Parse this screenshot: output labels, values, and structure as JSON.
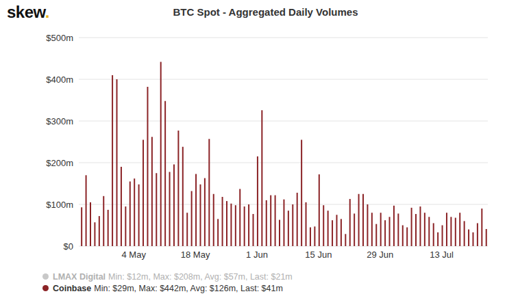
{
  "chart_data": {
    "type": "bar",
    "logo": "skew.",
    "title": "BTC Spot - Aggregated Daily Volumes",
    "categories": [
      null,
      null,
      null,
      null,
      null,
      null,
      null,
      null,
      null,
      null,
      null,
      null,
      "4 May",
      null,
      null,
      null,
      null,
      null,
      null,
      null,
      null,
      null,
      null,
      null,
      null,
      null,
      "18 May",
      null,
      null,
      null,
      null,
      null,
      null,
      null,
      null,
      null,
      null,
      null,
      null,
      null,
      "1 Jun",
      null,
      null,
      null,
      null,
      null,
      null,
      null,
      null,
      null,
      null,
      null,
      null,
      null,
      "15 Jun",
      null,
      null,
      null,
      null,
      null,
      null,
      null,
      null,
      null,
      null,
      null,
      null,
      null,
      "29 Jun",
      null,
      null,
      null,
      null,
      null,
      null,
      null,
      null,
      null,
      null,
      null,
      null,
      null,
      "13 Jul",
      null,
      null,
      null,
      null,
      null,
      null,
      null,
      null,
      null,
      null
    ],
    "series": [
      {
        "name": "LMAX Digital",
        "stats": "Min: $12m, Max: $208m, Avg: $57m, Last: $21m",
        "color": "#c8c8c8",
        "values": [
          null,
          null,
          null,
          null,
          null,
          null,
          null,
          null,
          null,
          null,
          null,
          null,
          null,
          null,
          null,
          null,
          null,
          null,
          null,
          null,
          null,
          null,
          null,
          null,
          null,
          null,
          null,
          null,
          null,
          null,
          null,
          null,
          null,
          null,
          null,
          null,
          null,
          null,
          null,
          null,
          null,
          null,
          null,
          null,
          null,
          null,
          null,
          null,
          null,
          null,
          null,
          null,
          null,
          null,
          null,
          null,
          null,
          null,
          null,
          null,
          null,
          null,
          null,
          null,
          null,
          null,
          null,
          null,
          null,
          null,
          null,
          null,
          null,
          null,
          null,
          null,
          null,
          null,
          null,
          null,
          null,
          null,
          null,
          null,
          null,
          null,
          null,
          null,
          null,
          null,
          null,
          null,
          null
        ]
      },
      {
        "name": "Coinbase",
        "stats": "Min: $29m, Max: $442m, Avg: $126m, Last: $41m",
        "color": "#8b2326",
        "values": [
          93,
          170,
          105,
          57,
          72,
          120,
          87,
          410,
          400,
          190,
          95,
          155,
          162,
          148,
          255,
          382,
          262,
          175,
          442,
          348,
          178,
          196,
          277,
          238,
          80,
          132,
          173,
          148,
          163,
          257,
          125,
          65,
          118,
          108,
          102,
          98,
          137,
          95,
          100,
          77,
          215,
          326,
          110,
          122,
          122,
          63,
          112,
          85,
          100,
          128,
          255,
          105,
          45,
          47,
          172,
          98,
          85,
          62,
          75,
          65,
          29,
          113,
          78,
          125,
          125,
          100,
          80,
          53,
          80,
          62,
          70,
          97,
          78,
          50,
          45,
          92,
          77,
          95,
          80,
          70,
          55,
          33,
          50,
          80,
          70,
          68,
          80,
          60,
          40,
          33,
          55,
          90,
          41
        ]
      }
    ],
    "ylim": [
      0,
      500
    ],
    "yticks": [
      {
        "value": 0,
        "label": "$0"
      },
      {
        "value": 100,
        "label": "$100m"
      },
      {
        "value": 200,
        "label": "$200m"
      },
      {
        "value": 300,
        "label": "$300m"
      },
      {
        "value": 400,
        "label": "$400m"
      },
      {
        "value": 500,
        "label": "$500m"
      }
    ],
    "grid": true
  }
}
